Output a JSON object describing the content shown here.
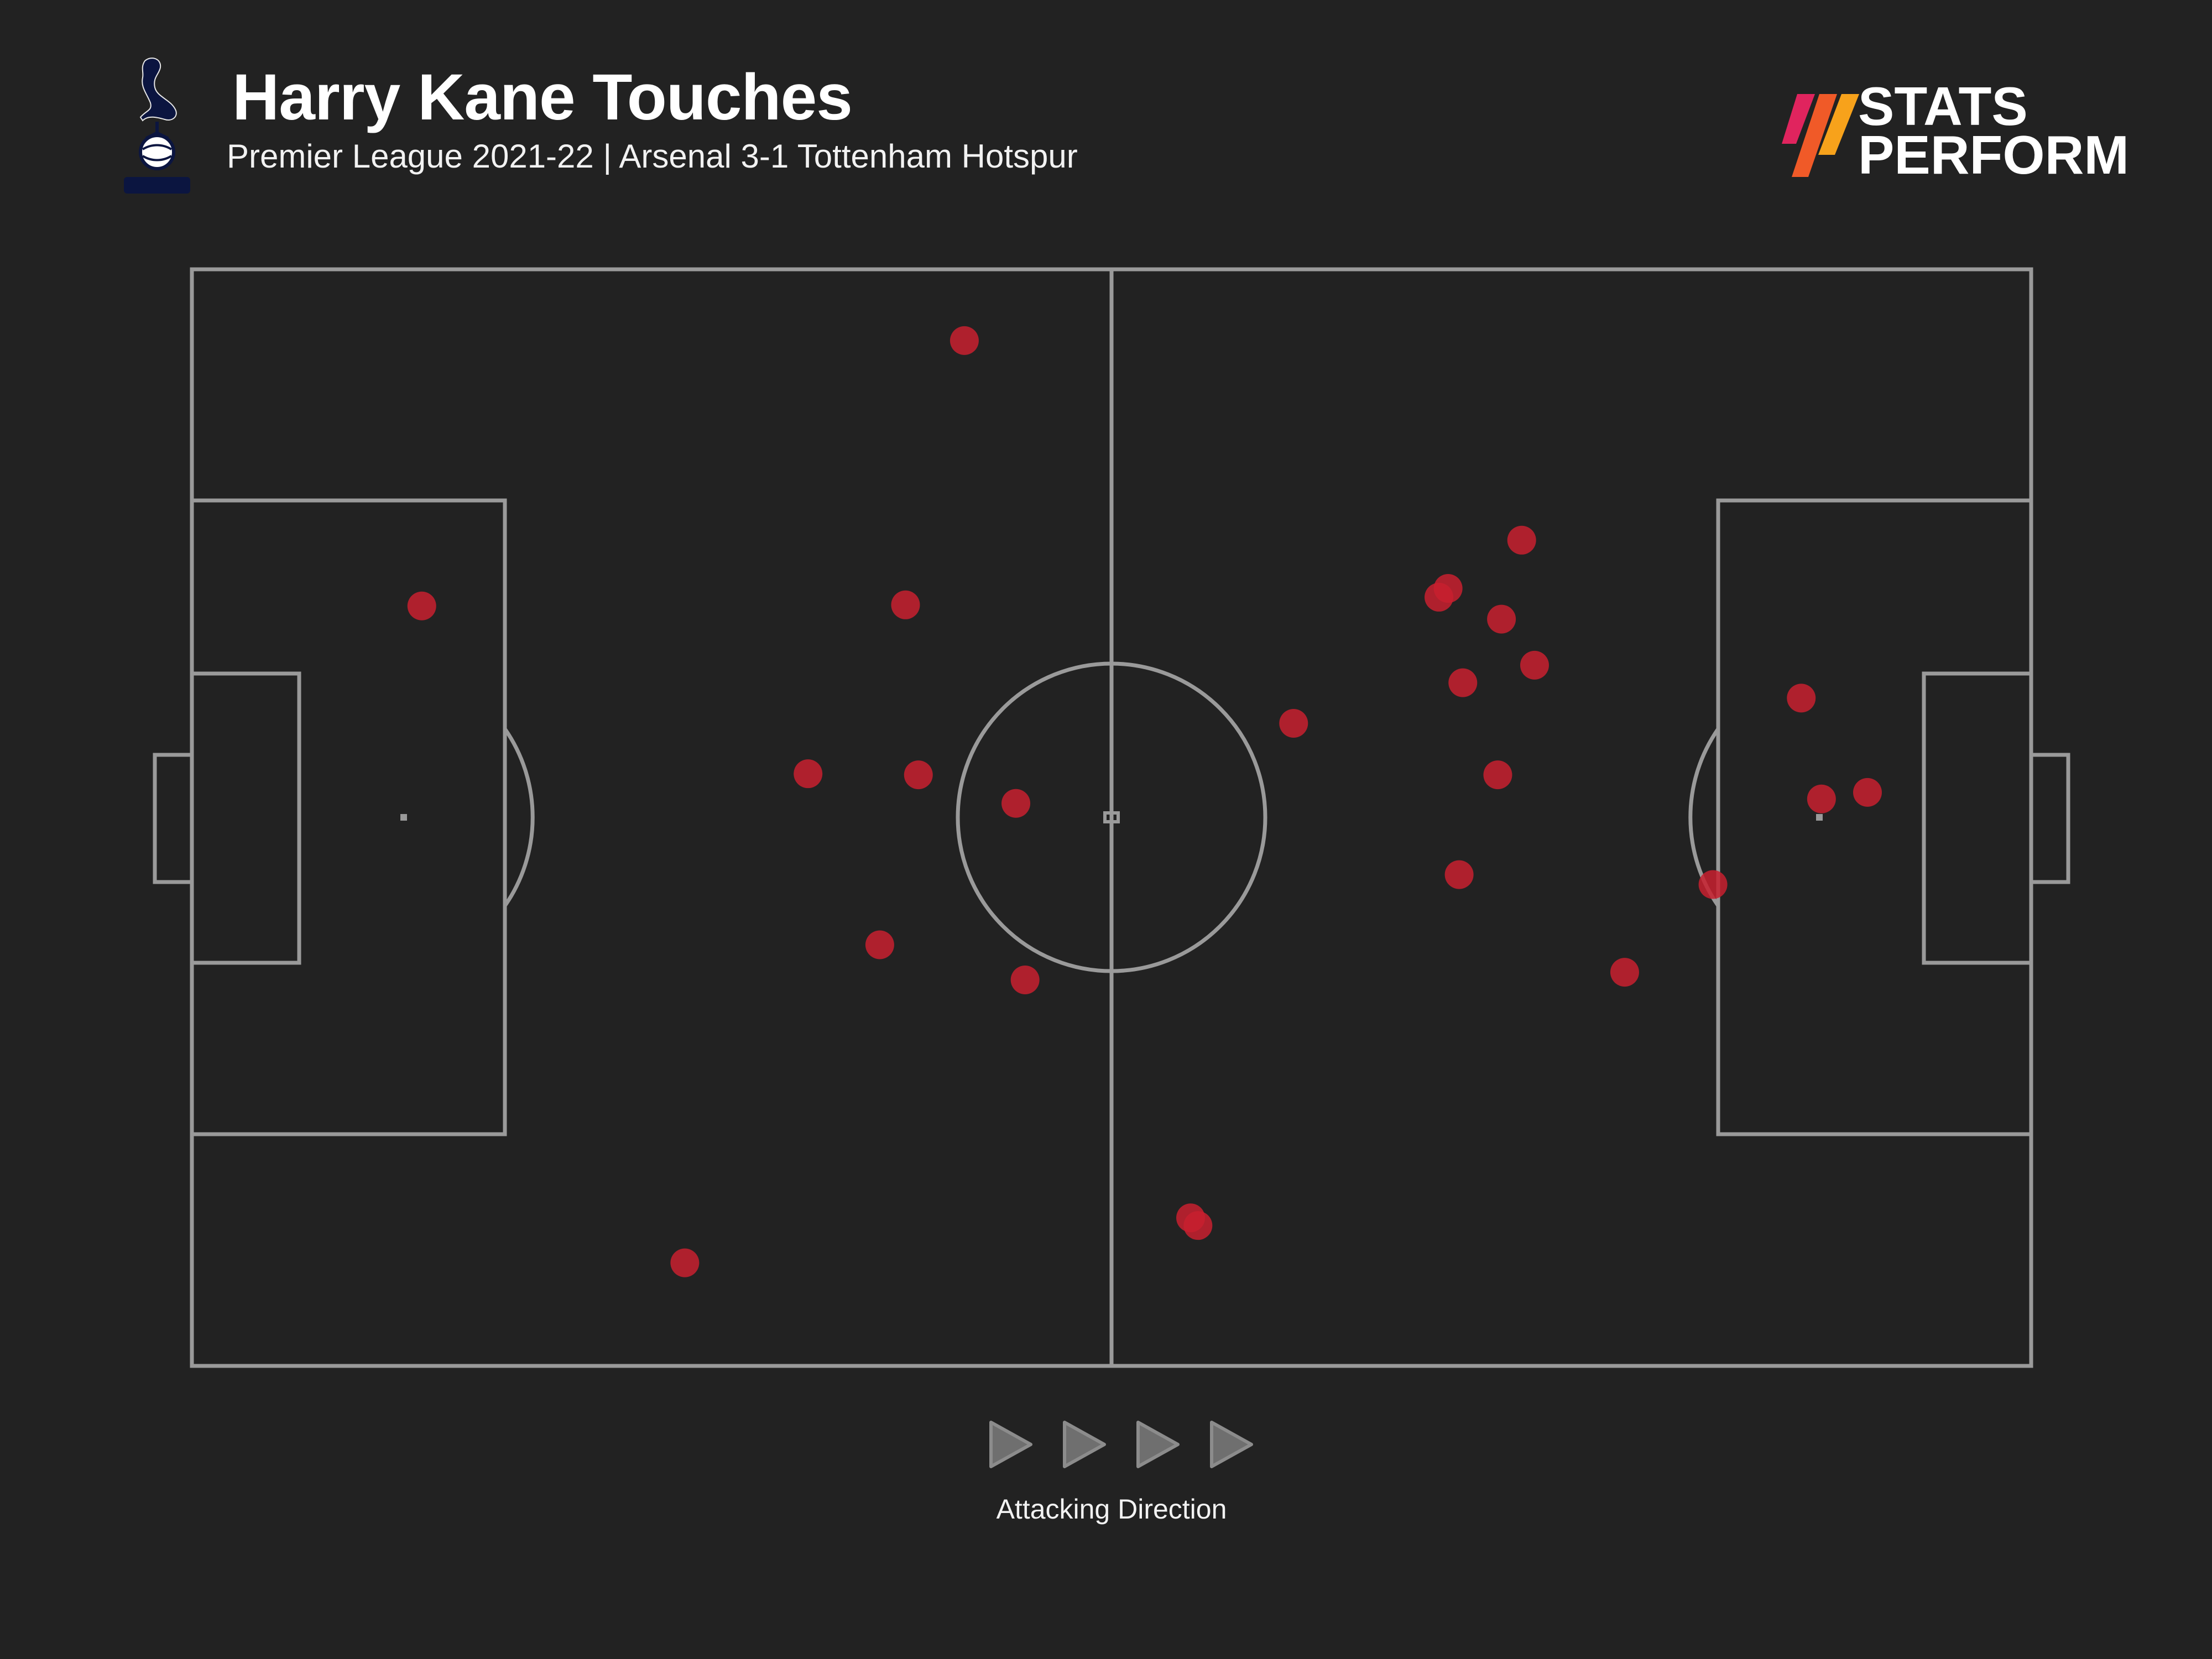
{
  "header": {
    "title": "Harry Kane Touches",
    "subtitle": "Premier League 2021-22 | Arsenal 3-1 Tottenham Hotspur",
    "crest_icon": "tottenham-cockerel-crest-icon"
  },
  "brand": {
    "line1": "STATS",
    "line2": "PERFORM",
    "logo_icon": "stats-perform-slashes-icon",
    "colors": [
      "#e0245e",
      "#f05a28",
      "#f7a21b"
    ]
  },
  "footer": {
    "direction_label": "Attacking Direction",
    "arrow_icon": "play-arrow-icon",
    "arrow_count": 4
  },
  "colors": {
    "background": "#222222",
    "pitch_lines": "#9a9a9a",
    "touch_marker": "#c8202f"
  },
  "chart_data": {
    "type": "scatter",
    "title": "Harry Kane Touches",
    "subtitle": "Premier League 2021-22 | Arsenal 3-1 Tottenham Hotspur",
    "xlim": [
      0,
      100
    ],
    "ylim": [
      0,
      100
    ],
    "attacking_direction": "left-to-right",
    "points": [
      {
        "x": 42.0,
        "y": 93.5
      },
      {
        "x": 12.5,
        "y": 69.3
      },
      {
        "x": 38.8,
        "y": 69.4
      },
      {
        "x": 33.5,
        "y": 54.0
      },
      {
        "x": 39.5,
        "y": 53.9
      },
      {
        "x": 44.8,
        "y": 51.3
      },
      {
        "x": 37.4,
        "y": 38.4
      },
      {
        "x": 45.3,
        "y": 35.2
      },
      {
        "x": 26.8,
        "y": 9.4
      },
      {
        "x": 54.3,
        "y": 13.5
      },
      {
        "x": 54.7,
        "y": 12.8
      },
      {
        "x": 59.9,
        "y": 58.6
      },
      {
        "x": 72.3,
        "y": 75.3
      },
      {
        "x": 68.3,
        "y": 70.9
      },
      {
        "x": 67.8,
        "y": 70.1
      },
      {
        "x": 71.2,
        "y": 68.1
      },
      {
        "x": 73.0,
        "y": 63.9
      },
      {
        "x": 69.1,
        "y": 62.3
      },
      {
        "x": 71.0,
        "y": 53.9
      },
      {
        "x": 68.9,
        "y": 44.8
      },
      {
        "x": 77.9,
        "y": 35.9
      },
      {
        "x": 82.7,
        "y": 43.9
      },
      {
        "x": 87.5,
        "y": 60.9
      },
      {
        "x": 88.6,
        "y": 51.7
      },
      {
        "x": 91.1,
        "y": 52.3
      }
    ]
  }
}
